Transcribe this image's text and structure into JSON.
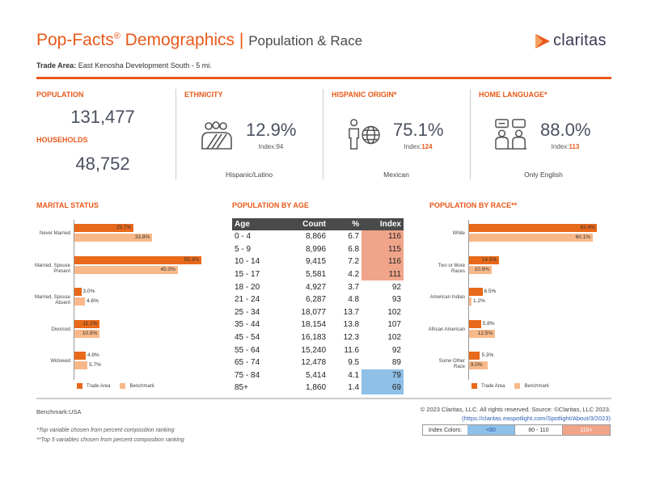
{
  "header": {
    "title_main": "Pop-Facts",
    "title_reg": "®",
    "title_rest": " Demographics",
    "separator": "|",
    "subtitle": "Population & Race",
    "logo_text": "claritas",
    "trade_area_label": "Trade Area:",
    "trade_area_value": "East Kenosha Development South - 5 mi."
  },
  "kpis": {
    "population_label": "POPULATION",
    "population_value": "131,477",
    "households_label": "HOUSEHOLDS",
    "households_value": "48,752",
    "ethnicity": {
      "label": "ETHNICITY",
      "pct": "12.9%",
      "index_label": "Index:",
      "index_value": "94",
      "caption": "Hispanic/Latino",
      "icon": "ethnicity-people-icon"
    },
    "hispanic": {
      "label": "HISPANIC ORIGIN*",
      "pct": "75.1%",
      "index_label": "Index:",
      "index_value": "124",
      "caption": "Mexican",
      "icon": "person-globe-icon"
    },
    "language": {
      "label": "HOME LANGUAGE*",
      "pct": "88.0%",
      "index_label": "Index:",
      "index_value": "113",
      "caption": "Only English",
      "icon": "conversation-icon"
    }
  },
  "marital": {
    "heading": "MARITAL STATUS",
    "legend_ta": "Trade Area",
    "legend_bm": "Benchmark"
  },
  "age": {
    "heading": "POPULATION BY AGE",
    "columns": [
      "Age",
      "Count",
      "%",
      "Index"
    ],
    "rows": [
      [
        "0 - 4",
        "8,866",
        "6.7",
        "116"
      ],
      [
        "5 - 9",
        "8,996",
        "6.8",
        "115"
      ],
      [
        "10 - 14",
        "9,415",
        "7.2",
        "116"
      ],
      [
        "15 - 17",
        "5,581",
        "4.2",
        "111"
      ],
      [
        "18 - 20",
        "4,927",
        "3.7",
        "92"
      ],
      [
        "21 - 24",
        "6,287",
        "4.8",
        "93"
      ],
      [
        "25 - 34",
        "18,077",
        "13.7",
        "102"
      ],
      [
        "35 - 44",
        "18,154",
        "13.8",
        "107"
      ],
      [
        "45 - 54",
        "16,183",
        "12.3",
        "102"
      ],
      [
        "55 - 64",
        "15,240",
        "11.6",
        "92"
      ],
      [
        "65 - 74",
        "12,478",
        "9.5",
        "89"
      ],
      [
        "75 - 84",
        "5,414",
        "4.1",
        "79"
      ],
      [
        "85+",
        "1,860",
        "1.4",
        "69"
      ]
    ]
  },
  "race": {
    "heading": "POPULATION BY RACE**",
    "legend_ta": "Trade Area",
    "legend_bm": "Benchmark"
  },
  "chart_data": [
    {
      "type": "bar",
      "orientation": "horizontal",
      "categories": [
        "Never Married",
        "Married, Spouse Present",
        "Married, Spouse Absent",
        "Divorced",
        "Widowed"
      ],
      "series": [
        {
          "name": "Trade Area",
          "values": [
            25.7,
            55.3,
            3.0,
            11.1,
            4.9
          ],
          "labels": [
            "25.7%",
            "55.3%",
            "3.0%",
            "11.1%",
            "4.9%"
          ]
        },
        {
          "name": "Benchmark",
          "values": [
            33.8,
            45.0,
            4.6,
            10.9,
            5.7
          ],
          "labels": [
            "33.8%",
            "45.0%",
            "4.6%",
            "10.9%",
            "5.7%"
          ]
        }
      ],
      "xlim": [
        0,
        60
      ],
      "legend_position": "bottom"
    },
    {
      "type": "bar",
      "orientation": "horizontal",
      "categories": [
        "White",
        "Two or More Races",
        "American Indian",
        "African American",
        "Some Other Race"
      ],
      "series": [
        {
          "name": "Trade Area",
          "values": [
            62.4,
            14.5,
            6.5,
            5.8,
            5.3
          ],
          "labels": [
            "62.4%",
            "14.5%",
            "6.5%",
            "5.8%",
            "5.3%"
          ]
        },
        {
          "name": "Benchmark",
          "values": [
            60.1,
            10.9,
            1.2,
            12.5,
            9.0
          ],
          "labels": [
            "60.1%",
            "10.9%",
            "1.2%",
            "12.5%",
            "9.0%"
          ]
        }
      ],
      "xlim": [
        0,
        65
      ],
      "legend_position": "bottom"
    }
  ],
  "footer": {
    "benchmark": "Benchmark:USA",
    "note1": "*Top variable chosen from percent composition ranking",
    "note2": "**Top 5 variables chosen from percent composition ranking",
    "copyright": "© 2023 Claritas, LLC. All rights reserved. Source: ©Claritas, LLC 2023.",
    "link": "(https://claritas.easpotlight.com/Spotlight/About/3/2023)",
    "index_colors_label": "Index Colors:",
    "index_low": "<80",
    "index_mid": "80 - 110",
    "index_high": "110+"
  },
  "colors": {
    "accent": "#e8591a",
    "trade_area": "#e8691a",
    "benchmark": "#f8b98a",
    "index_low": "#8fc0e8",
    "index_high": "#f0a58a"
  }
}
